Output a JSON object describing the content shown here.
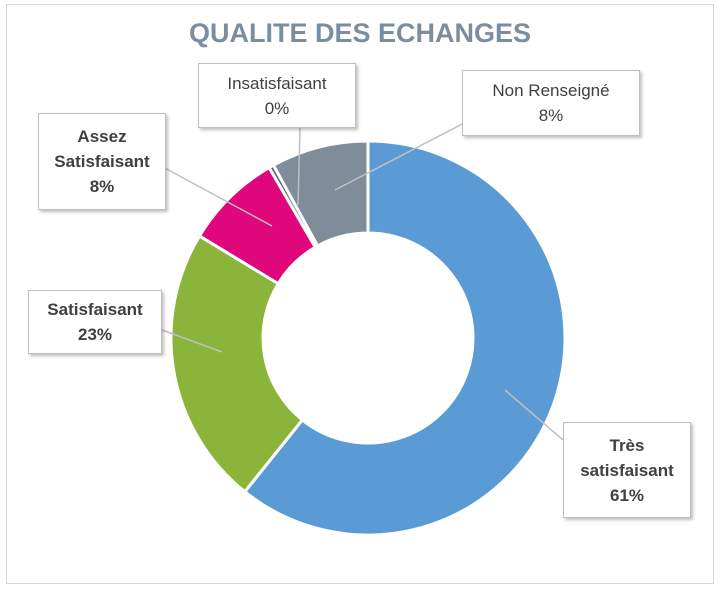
{
  "chart_data": {
    "type": "donut",
    "title": "QUALITE DES ECHANGES",
    "categories": [
      "Très satisfaisant",
      "Satisfaisant",
      "Assez Satisfaisant",
      "Insatisfaisant",
      "Non Renseigné"
    ],
    "values": [
      61,
      23,
      8,
      0.4,
      8
    ],
    "value_labels": [
      "61%",
      "23%",
      "8%",
      "0%",
      "8%"
    ],
    "colors": [
      "#5b9bd5",
      "#8bb43a",
      "#e0067c",
      "#5c6670",
      "#7f8c99"
    ]
  }
}
